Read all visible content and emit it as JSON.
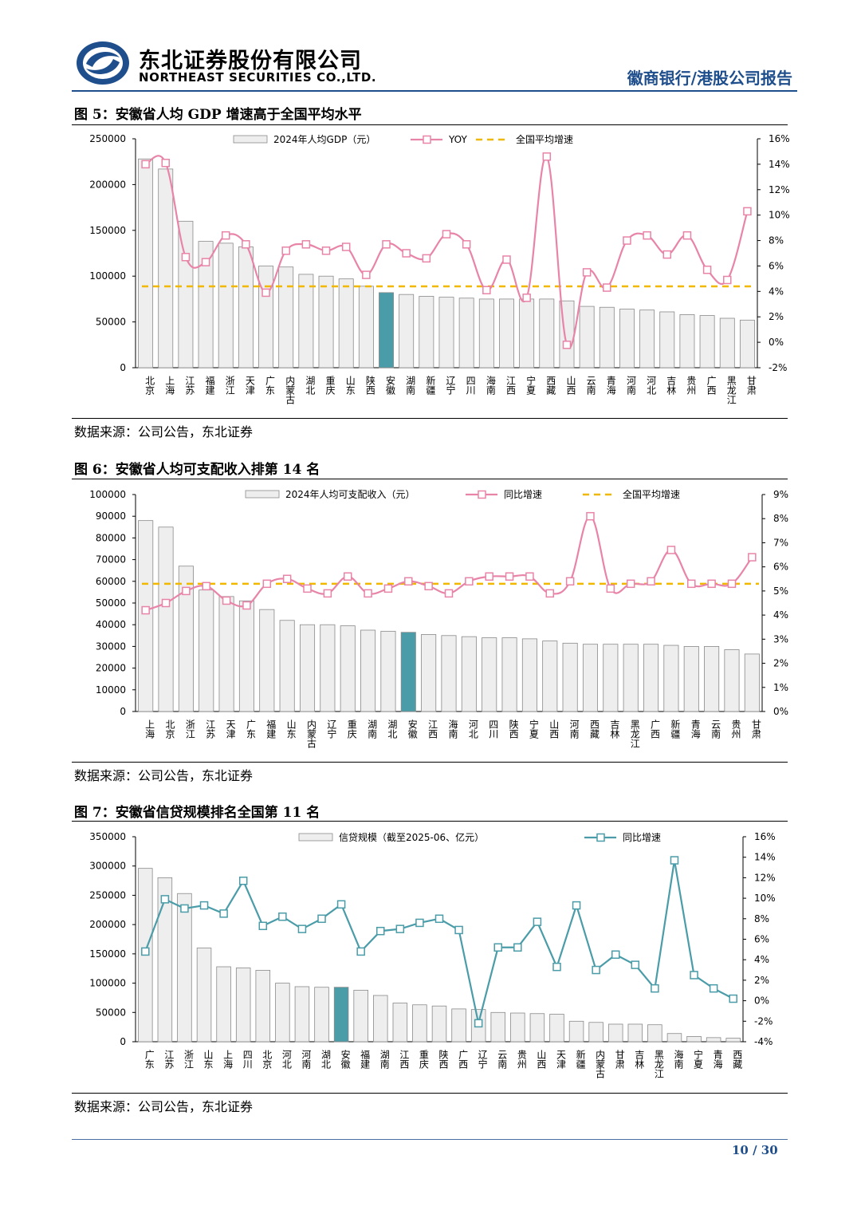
{
  "header": {
    "company_cn": "东北证券股份有限公司",
    "company_en": "NORTHEAST SECURITIES CO.,LTD.",
    "report_type": "徽商银行/港股公司报告"
  },
  "footer": {
    "page": "10 / 30"
  },
  "colors": {
    "bar": "#eeeeee",
    "bar_highlight": "#4a9ca8",
    "yoy_pink": "#e884a8",
    "avg_gold": "#f0b800",
    "credit_line": "#4a9ca8"
  },
  "figures": [
    {
      "title": "图 5：安徽省人均 GDP 增速高于全国平均水平",
      "source": "数据来源：公司公告，东北证券",
      "legend": {
        "bars": "2024年人均GDP（元）",
        "line": "YOY",
        "avg": "全国平均增速"
      }
    },
    {
      "title": "图 6：安徽省人均可支配收入排第 14 名",
      "source": "数据来源：公司公告，东北证券",
      "legend": {
        "bars": "2024年人均可支配收入（元）",
        "line": "同比增速",
        "avg": "全国平均增速"
      }
    },
    {
      "title": "图 7：安徽省信贷规模排名全国第 11 名",
      "source": "数据来源：公司公告，东北证券",
      "legend": {
        "bars": "信贷规模（截至2025-06、亿元）",
        "line": "同比增速",
        "avg": ""
      }
    }
  ],
  "chart_data": [
    {
      "type": "bar+line",
      "title": "图 5：安徽省人均 GDP 增速高于全国平均水平",
      "categories": [
        "北京",
        "上海",
        "江苏",
        "福建",
        "浙江",
        "天津",
        "广东",
        "内蒙古",
        "湖北",
        "重庆",
        "山东",
        "陕西",
        "安徽",
        "湖南",
        "新疆",
        "辽宁",
        "四川",
        "海南",
        "江西",
        "宁夏",
        "西藏",
        "山西",
        "云南",
        "青海",
        "河南",
        "河北",
        "吉林",
        "贵州",
        "广西",
        "黑龙江",
        "甘肃"
      ],
      "highlight": "安徽",
      "series": [
        {
          "name": "2024年人均GDP（元）",
          "axis": "left",
          "kind": "bar",
          "values": [
            228000,
            217000,
            160000,
            138000,
            136000,
            132000,
            111000,
            110000,
            102000,
            100000,
            97000,
            89000,
            82000,
            80000,
            78000,
            77000,
            76000,
            75000,
            75000,
            75000,
            75000,
            73000,
            67000,
            66000,
            64000,
            63000,
            61000,
            58000,
            57000,
            54000,
            52000
          ]
        },
        {
          "name": "YOY",
          "axis": "right",
          "kind": "line",
          "values": [
            14.0,
            14.1,
            6.7,
            6.3,
            8.4,
            7.7,
            3.9,
            7.2,
            7.7,
            7.2,
            7.5,
            5.3,
            7.7,
            7.0,
            6.6,
            8.5,
            7.7,
            4.1,
            6.5,
            3.5,
            14.6,
            -0.2,
            5.5,
            4.3,
            8.0,
            8.4,
            6.9,
            8.4,
            5.7,
            4.9,
            10.3
          ]
        },
        {
          "name": "全国平均增速",
          "axis": "right",
          "kind": "hline",
          "value": 4.4
        }
      ],
      "ylim_left": [
        0,
        250000
      ],
      "yticks_left": [
        0,
        50000,
        100000,
        150000,
        200000,
        250000
      ],
      "ylim_right": [
        -2,
        16
      ],
      "yticks_right": [
        "-2%",
        "0%",
        "2%",
        "4%",
        "6%",
        "8%",
        "10%",
        "12%",
        "14%",
        "16%"
      ]
    },
    {
      "type": "bar+line",
      "title": "图 6：安徽省人均可支配收入排第 14 名",
      "categories": [
        "上海",
        "北京",
        "浙江",
        "江苏",
        "天津",
        "广东",
        "福建",
        "山东",
        "内蒙古",
        "辽宁",
        "重庆",
        "湖南",
        "湖北",
        "安徽",
        "江西",
        "海南",
        "河北",
        "四川",
        "陕西",
        "宁夏",
        "山西",
        "河南",
        "西藏",
        "吉林",
        "黑龙江",
        "广西",
        "新疆",
        "青海",
        "云南",
        "贵州",
        "甘肃"
      ],
      "highlight": "安徽",
      "series": [
        {
          "name": "2024年人均可支配收入（元）",
          "axis": "left",
          "kind": "bar",
          "values": [
            88000,
            85000,
            67000,
            56000,
            53000,
            51000,
            47000,
            42000,
            40000,
            40000,
            39500,
            37500,
            37000,
            36500,
            35500,
            35000,
            34500,
            34000,
            34000,
            33500,
            32500,
            31500,
            31000,
            31000,
            31000,
            31000,
            30500,
            30000,
            30000,
            28500,
            26500
          ]
        },
        {
          "name": "同比增速",
          "axis": "right",
          "kind": "line",
          "values": [
            4.2,
            4.5,
            5.0,
            5.2,
            4.6,
            4.4,
            5.3,
            5.5,
            5.1,
            4.9,
            5.6,
            4.9,
            5.1,
            5.4,
            5.2,
            4.9,
            5.4,
            5.6,
            5.6,
            5.6,
            4.9,
            5.4,
            8.1,
            5.1,
            5.3,
            5.4,
            6.7,
            5.3,
            5.3,
            5.3,
            6.4
          ]
        },
        {
          "name": "全国平均增速",
          "axis": "right",
          "kind": "hline",
          "value": 5.3
        }
      ],
      "ylim_left": [
        0,
        100000
      ],
      "yticks_left": [
        0,
        10000,
        20000,
        30000,
        40000,
        50000,
        60000,
        70000,
        80000,
        90000,
        100000
      ],
      "ylim_right": [
        0,
        9
      ],
      "yticks_right": [
        "0%",
        "1%",
        "2%",
        "3%",
        "4%",
        "5%",
        "6%",
        "7%",
        "8%",
        "9%"
      ]
    },
    {
      "type": "bar+line",
      "title": "图 7：安徽省信贷规模排名全国第 11 名",
      "categories": [
        "广东",
        "江苏",
        "浙江",
        "山东",
        "上海",
        "四川",
        "北京",
        "河北",
        "河南",
        "湖北",
        "安徽",
        "福建",
        "湖南",
        "江西",
        "重庆",
        "陕西",
        "广西",
        "辽宁",
        "云南",
        "贵州",
        "山西",
        "天津",
        "新疆",
        "内蒙古",
        "甘肃",
        "吉林",
        "黑龙江",
        "海南",
        "宁夏",
        "青海",
        "西藏"
      ],
      "highlight": "安徽",
      "series": [
        {
          "name": "信贷规模（截至2025-06、亿元）",
          "axis": "left",
          "kind": "bar",
          "values": [
            296000,
            280000,
            253000,
            160000,
            128000,
            126000,
            122000,
            100000,
            94000,
            93000,
            93000,
            88000,
            79000,
            66000,
            63000,
            61000,
            56000,
            55000,
            50000,
            49000,
            48000,
            47000,
            35000,
            33000,
            30000,
            30000,
            29000,
            14000,
            9000,
            7000,
            6000
          ]
        },
        {
          "name": "同比增速",
          "axis": "right",
          "kind": "line",
          "values": [
            4.8,
            9.9,
            9.0,
            9.3,
            8.5,
            11.7,
            7.3,
            8.2,
            7.0,
            8.0,
            9.4,
            4.8,
            6.8,
            7.0,
            7.6,
            8.0,
            6.9,
            -2.2,
            5.2,
            5.2,
            7.7,
            3.3,
            9.3,
            3.0,
            4.5,
            3.5,
            1.2,
            13.7,
            2.5,
            1.2,
            0.2
          ]
        }
      ],
      "ylim_left": [
        0,
        350000
      ],
      "yticks_left": [
        0,
        50000,
        100000,
        150000,
        200000,
        250000,
        300000,
        350000
      ],
      "ylim_right": [
        -4,
        16
      ],
      "yticks_right": [
        "-4%",
        "-2%",
        "0%",
        "2%",
        "4%",
        "6%",
        "8%",
        "10%",
        "12%",
        "14%",
        "16%"
      ]
    }
  ]
}
